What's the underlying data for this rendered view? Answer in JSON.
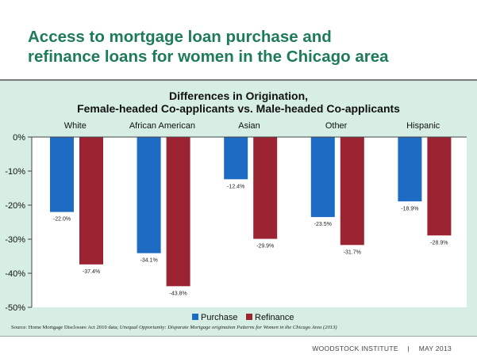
{
  "slide": {
    "title_line1": "Access to mortgage loan purchase and",
    "title_line2": "refinance loans for women in the Chicago area"
  },
  "chart_data": {
    "type": "bar",
    "title": "Differences in Origination,",
    "subtitle": "Female-headed Co-applicants vs. Male-headed Co-applicants",
    "categories": [
      "White",
      "African American",
      "Asian",
      "Other",
      "Hispanic"
    ],
    "series": [
      {
        "name": "Purchase",
        "color": "#1e6bc4",
        "values": [
          -22.0,
          -34.1,
          -12.4,
          -23.5,
          -18.9
        ],
        "labels": [
          "-22.0%",
          "-34.1%",
          "-12.4%",
          "-23.5%",
          "-18.9%"
        ]
      },
      {
        "name": "Refinance",
        "color": "#9c2332",
        "values": [
          -37.4,
          -43.8,
          -29.9,
          -31.7,
          -28.9
        ],
        "labels": [
          "-37.4%",
          "-43.8%",
          "-29.9%",
          "-31.7%",
          "-28.9%"
        ]
      }
    ],
    "ylim": [
      -50,
      0
    ],
    "yticks": [
      0,
      -10,
      -20,
      -30,
      -40,
      -50
    ],
    "ytick_labels": [
      "0%",
      "-10%",
      "-20%",
      "-30%",
      "-40%",
      "-50%"
    ],
    "xlabel": "",
    "ylabel": "",
    "category_label_position": "top",
    "legend": "bottom",
    "grid": false
  },
  "source": {
    "prefix": "Source: Home Mortgage Disclosure Act 2010 data;",
    "report": "Unequal Opportunity:",
    "report_rest": "Disparate Mortgage origination Patterns for Women in the Chicago Area (2013)"
  },
  "footer": {
    "org": "WOODSTOCK INSTITUTE",
    "separator": "|",
    "date": "MAY 2013"
  }
}
